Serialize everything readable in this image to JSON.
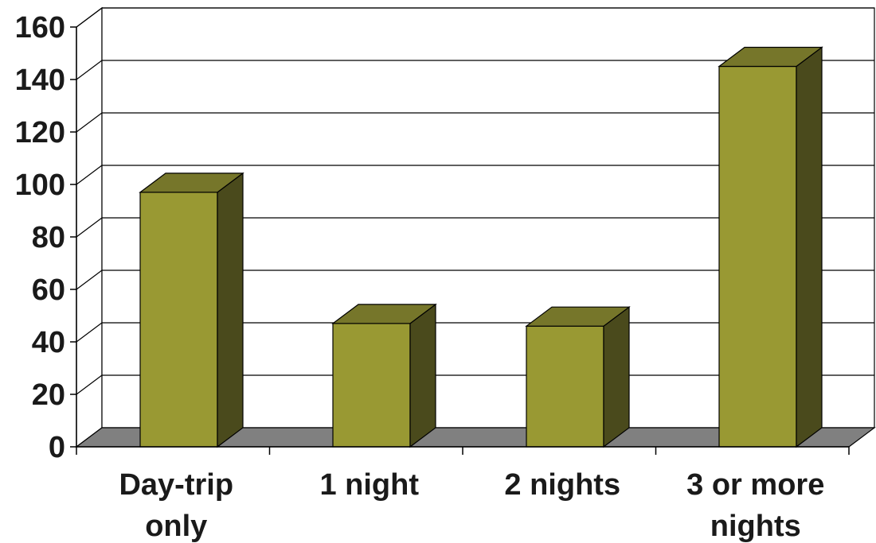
{
  "chart_data": {
    "type": "bar",
    "categories": [
      [
        "Day-trip",
        "only"
      ],
      [
        "1 night"
      ],
      [
        "2 nights"
      ],
      [
        "3 or more",
        "nights"
      ]
    ],
    "values": [
      97,
      47,
      46,
      145
    ],
    "ylim": [
      0,
      160
    ],
    "yticks": [
      "0",
      "20",
      "40",
      "60",
      "80",
      "100",
      "120",
      "140",
      "160"
    ],
    "grid": true,
    "legend": "none",
    "three_d": true,
    "colors": {
      "bar_front": "#999933",
      "bar_top": "#76762a",
      "bar_side": "#4a4a1c",
      "floor": "#808080",
      "gridline": "#000000"
    }
  }
}
